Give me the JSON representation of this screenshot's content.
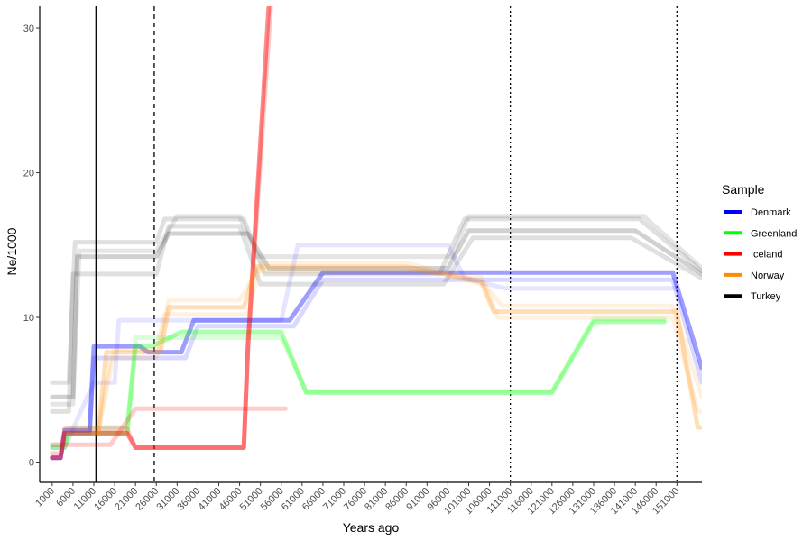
{
  "chart_data": {
    "type": "line",
    "xlabel": "Years ago",
    "ylabel": "Ne/1000",
    "xlim": [
      -2000,
      157000
    ],
    "ylim": [
      -1.4,
      31.5
    ],
    "x_ticks": [
      1000,
      6000,
      11000,
      16000,
      21000,
      26000,
      31000,
      36000,
      41000,
      46000,
      51000,
      56000,
      61000,
      66000,
      71000,
      76000,
      81000,
      86000,
      91000,
      96000,
      101000,
      106000,
      111000,
      116000,
      121000,
      126000,
      131000,
      136000,
      141000,
      146000,
      151000
    ],
    "x_tick_labels": [
      "1000",
      "6000",
      "11000",
      "16000",
      "21000",
      "26000",
      "31000",
      "36000",
      "41000",
      "46000",
      "51000",
      "56000",
      "61000",
      "66000",
      "71000",
      "76000",
      "81000",
      "86000",
      "91000",
      "96000",
      "101000",
      "106000",
      "111000",
      "116000",
      "121000",
      "126000",
      "131000",
      "136000",
      "141000",
      "146000",
      "151000"
    ],
    "y_ticks": [
      0,
      10,
      20,
      30
    ],
    "y_tick_labels": [
      "0",
      "10",
      "20",
      "30"
    ],
    "grid": false,
    "legend": {
      "title": "Sample",
      "placement": "right",
      "entries": [
        {
          "name": "Denmark",
          "color": "#0000ff"
        },
        {
          "name": "Greenland",
          "color": "#00ff00"
        },
        {
          "name": "Iceland",
          "color": "#ff0000"
        },
        {
          "name": "Norway",
          "color": "#ff8c00"
        },
        {
          "name": "Turkey",
          "color": "#000000"
        }
      ]
    },
    "vlines": [
      {
        "x": 11500,
        "style": "solid"
      },
      {
        "x": 25500,
        "style": "dashed"
      },
      {
        "x": 111000,
        "style": "dotted"
      },
      {
        "x": 151000,
        "style": "dotted"
      }
    ],
    "series": [
      {
        "name": "Turkey",
        "color": "#000000",
        "opacity": 0.18,
        "x": [
          1000,
          6000,
          7000,
          11000,
          26000,
          29000,
          32000,
          48000,
          53000,
          65000,
          96000,
          101000,
          141000,
          157000
        ],
        "y": [
          4.5,
          4.5,
          14.2,
          14.2,
          14.2,
          15.8,
          15.8,
          15.8,
          13.4,
          13.4,
          13.4,
          16.0,
          16.0,
          13.0
        ]
      },
      {
        "name": "Turkey",
        "color": "#000000",
        "opacity": 0.12,
        "x": [
          1000,
          5000,
          6500,
          11000,
          26000,
          28000,
          33000,
          47000,
          52000,
          62000,
          94000,
          100000,
          142000,
          157000
        ],
        "y": [
          5.5,
          5.5,
          15.2,
          15.2,
          15.2,
          16.8,
          16.8,
          16.8,
          13.0,
          13.0,
          13.0,
          16.8,
          16.8,
          13.2
        ]
      },
      {
        "name": "Turkey",
        "color": "#000000",
        "opacity": 0.12,
        "x": [
          1000,
          5000,
          6000,
          11000,
          26000,
          29000,
          34000,
          46000,
          51000,
          63000,
          95000,
          102000,
          140000,
          157000
        ],
        "y": [
          3.5,
          3.5,
          13.0,
          13.0,
          13.0,
          16.3,
          16.3,
          16.3,
          12.3,
          12.3,
          12.3,
          15.5,
          15.5,
          12.7
        ]
      },
      {
        "name": "Turkey",
        "color": "#000000",
        "opacity": 0.1,
        "x": [
          1000,
          6000,
          7500,
          11000,
          26000,
          31000,
          46000,
          50000,
          64000,
          97000,
          101000,
          143000,
          157000
        ],
        "y": [
          4.0,
          4.0,
          14.6,
          14.6,
          14.6,
          17.0,
          17.0,
          14.2,
          14.2,
          14.2,
          17.0,
          17.0,
          13.4
        ]
      },
      {
        "name": "Denmark",
        "color": "#0000ff",
        "opacity": 0.38,
        "x": [
          1000,
          3000,
          4000,
          10000,
          11000,
          22000,
          24000,
          32000,
          35000,
          56000,
          58000,
          66000,
          150000,
          157000
        ],
        "y": [
          0.3,
          0.3,
          2.2,
          2.2,
          8.0,
          8.0,
          7.6,
          7.6,
          9.8,
          9.8,
          9.8,
          13.1,
          13.1,
          6.5
        ]
      },
      {
        "name": "Denmark",
        "color": "#0000ff",
        "opacity": 0.15,
        "x": [
          1000,
          3000,
          4000,
          10000,
          11000,
          22000,
          26000,
          33000,
          36000,
          56000,
          59000,
          66000,
          150000,
          157000
        ],
        "y": [
          0.3,
          0.3,
          2.0,
          2.0,
          7.2,
          7.2,
          7.2,
          7.2,
          9.4,
          9.4,
          9.4,
          12.6,
          12.6,
          5.5
        ]
      },
      {
        "name": "Denmark",
        "color": "#0000ff",
        "opacity": 0.1,
        "x": [
          1000,
          4000,
          11000,
          16000,
          17000,
          31000,
          36000,
          56000,
          60000,
          96000,
          100000,
          110000,
          146000,
          151000
        ],
        "y": [
          1.0,
          1.0,
          5.5,
          5.5,
          9.8,
          9.8,
          9.8,
          9.8,
          15.0,
          15.0,
          12.7,
          12.0,
          12.0,
          12.0
        ]
      },
      {
        "name": "Greenland",
        "color": "#00ff00",
        "opacity": 0.32,
        "x": [
          1000,
          4000,
          5000,
          19000,
          21000,
          25000,
          32000,
          56000,
          62000,
          121000,
          131000,
          148000
        ],
        "y": [
          1.0,
          1.0,
          2.0,
          2.0,
          8.0,
          8.0,
          9.0,
          9.0,
          4.8,
          4.8,
          9.7,
          9.7
        ]
      },
      {
        "name": "Greenland",
        "color": "#00ff00",
        "opacity": 0.15,
        "x": [
          1000,
          4000,
          5000,
          19000,
          21000,
          25000,
          32000,
          56000,
          62000,
          121000,
          131000,
          148000
        ],
        "y": [
          1.2,
          1.2,
          2.4,
          2.4,
          8.6,
          8.6,
          8.6,
          8.6,
          4.9,
          4.9,
          9.9,
          9.9
        ]
      },
      {
        "name": "Iceland",
        "color": "#ff0000",
        "opacity": 0.45,
        "x": [
          1000,
          3000,
          4000,
          19000,
          21000,
          47000,
          48000,
          53000
        ],
        "y": [
          0.3,
          0.3,
          2.0,
          2.0,
          1.0,
          1.0,
          8.0,
          31.5
        ]
      },
      {
        "name": "Iceland",
        "color": "#ff0000",
        "opacity": 0.2,
        "x": [
          1000,
          3000,
          4000,
          19000,
          21000,
          47000,
          48000,
          53500
        ],
        "y": [
          0.6,
          0.6,
          2.3,
          2.3,
          1.0,
          1.0,
          8.0,
          31.5
        ]
      },
      {
        "name": "Iceland",
        "color": "#ff0000",
        "opacity": 0.2,
        "x": [
          1000,
          15000,
          21000,
          57000
        ],
        "y": [
          1.2,
          1.2,
          3.7,
          3.7
        ]
      },
      {
        "name": "Norway",
        "color": "#ff8c00",
        "opacity": 0.28,
        "x": [
          12000,
          14000,
          27000,
          29000,
          47000,
          50000,
          86000,
          104000,
          107000,
          151000,
          156000,
          157000
        ],
        "y": [
          2.0,
          7.6,
          7.6,
          10.7,
          10.7,
          13.5,
          13.5,
          12.5,
          10.4,
          10.4,
          2.4,
          2.4
        ]
      },
      {
        "name": "Norway",
        "color": "#ff8c00",
        "opacity": 0.12,
        "x": [
          12000,
          15000,
          26000,
          29000,
          46000,
          50000,
          86000,
          104000,
          108000,
          150000,
          156000,
          157000
        ],
        "y": [
          2.0,
          7.2,
          7.2,
          11.2,
          11.2,
          13.2,
          13.2,
          12.8,
          10.0,
          10.0,
          3.5,
          3.5
        ]
      },
      {
        "name": "Norway",
        "color": "#ff8c00",
        "opacity": 0.12,
        "x": [
          12000,
          16000,
          26000,
          28000,
          48000,
          51000,
          86000,
          105000,
          109000,
          150000,
          157000
        ],
        "y": [
          2.0,
          7.8,
          7.8,
          10.2,
          10.2,
          13.8,
          13.8,
          12.2,
          10.8,
          10.8,
          4.5
        ]
      }
    ]
  }
}
